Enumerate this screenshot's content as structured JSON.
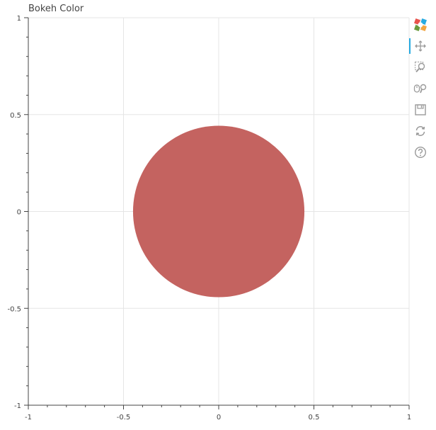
{
  "plot": {
    "title": "Bokeh Color"
  },
  "toolbar": {
    "tools": [
      {
        "icon": "bokeh-logo-icon",
        "label": "Bokeh logo"
      },
      {
        "icon": "pan-icon",
        "label": "Pan",
        "active": true
      },
      {
        "icon": "box-zoom-icon",
        "label": "Box Zoom"
      },
      {
        "icon": "wheel-zoom-icon",
        "label": "Wheel Zoom"
      },
      {
        "icon": "save-icon",
        "label": "Save"
      },
      {
        "icon": "reset-icon",
        "label": "Reset"
      },
      {
        "icon": "help-icon",
        "label": "Help"
      }
    ]
  },
  "chart_data": {
    "type": "scatter",
    "title": "Bokeh Color",
    "xlim": [
      -1,
      1
    ],
    "ylim": [
      -1,
      1
    ],
    "x_ticks": [
      -1,
      -0.5,
      0,
      0.5,
      1
    ],
    "y_ticks": [
      -1,
      -0.5,
      0,
      0.5,
      1
    ],
    "x_tick_labels": [
      "-1",
      "-0.5",
      "0",
      "0.5",
      "1"
    ],
    "y_tick_labels": [
      "-1",
      "-0.5",
      "0",
      "0.5",
      "1"
    ],
    "grid": true,
    "points": [
      {
        "x": 0,
        "y": 0,
        "radius": 0.45,
        "color": "#c46360"
      }
    ],
    "colors": {
      "grid": "#e5e5e5",
      "axis": "#444444",
      "tick_label": "#444444",
      "accent": "#26aae1"
    }
  }
}
